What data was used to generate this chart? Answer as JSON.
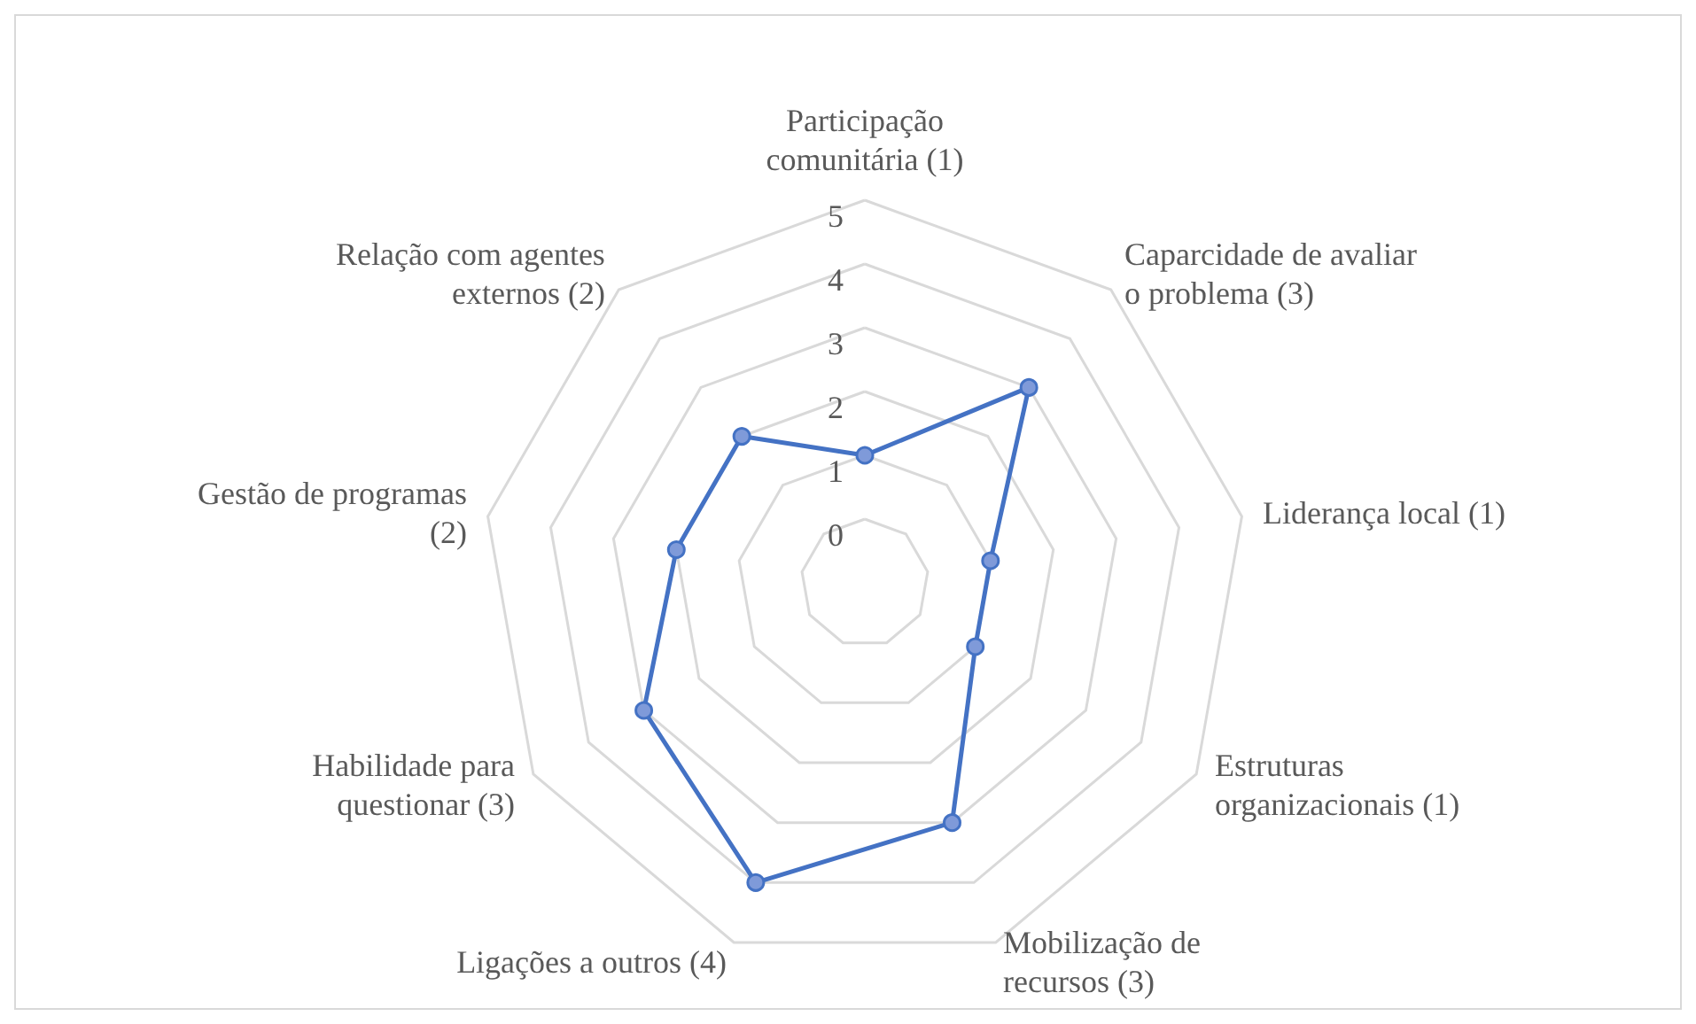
{
  "chart_data": {
    "type": "radar",
    "categories": [
      "Participação comunitária (1)",
      "Caparcidade de avaliar o problema (3)",
      "Liderança local (1)",
      "Estruturas organizacionais (1)",
      "Mobilização de recursos (3)",
      "Ligações a outros (4)",
      "Habilidade para questionar (3)",
      "Gestão de programas (2)",
      "Relação com agentes externos (2)"
    ],
    "series": [
      {
        "color": "#4472c4",
        "values": [
          1,
          3,
          1,
          1,
          3,
          4,
          3,
          2,
          2
        ]
      }
    ],
    "ylim": [
      -1,
      5
    ],
    "yticks": [
      0,
      1,
      2,
      3,
      4,
      5
    ],
    "marker": "circle",
    "grid": true
  }
}
